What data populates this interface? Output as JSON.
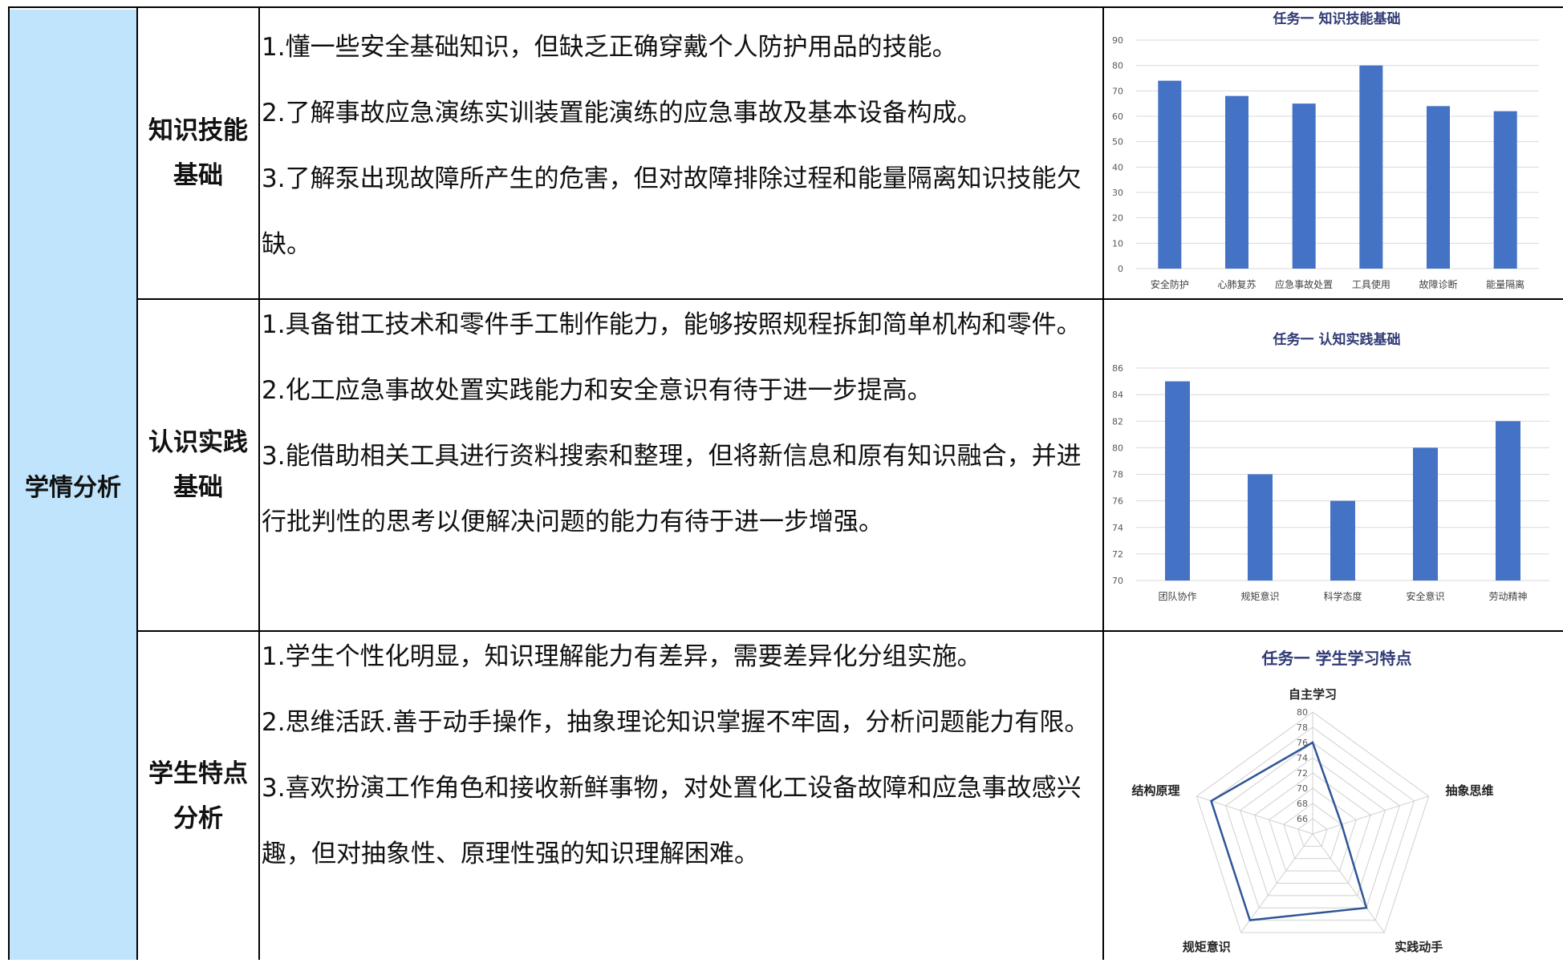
{
  "main_label": "学情分析",
  "rows": [
    {
      "label_lines": [
        "知识技能",
        "基础"
      ],
      "paragraphs": [
        "1.懂一些安全基础知识，但缺乏正确穿戴个人防护用品的技能。",
        "2.了解事故应急演练实训装置能演练的应急事故及基本设备构成。",
        "3.了解泵出现故障所产生的危害，但对故障排除过程和能量隔离知识技能欠缺。"
      ]
    },
    {
      "label_lines": [
        "认识实践",
        "基础"
      ],
      "paragraphs": [
        "1.具备钳工技术和零件手工制作能力，能够按照规程拆卸简单机构和零件。",
        "2.化工应急事故处置实践能力和安全意识有待于进一步提高。",
        "3.能借助相关工具进行资料搜索和整理，但将新信息和原有知识融合，并进行批判性的思考以便解决问题的能力有待于进一步增强。"
      ]
    },
    {
      "label_lines": [
        "学生特点",
        "分析"
      ],
      "paragraphs": [
        "1.学生个性化明显，知识理解能力有差异，需要差异化分组实施。",
        "2.思维活跃.善于动手操作，抽象理论知识掌握不牢固，分析问题能力有限。",
        "3.喜欢扮演工作角色和接收新鲜事物，对处置化工设备故障和应急事故感兴趣，但对抽象性、原理性强的知识理解困难。"
      ]
    }
  ],
  "chart_data": [
    {
      "type": "bar",
      "title": "任务一 知识技能基础",
      "categories": [
        "安全防护",
        "心肺复苏",
        "应急事故处置",
        "工具使用",
        "故障诊断",
        "能量隔离"
      ],
      "values": [
        74,
        68,
        65,
        80,
        64,
        62
      ],
      "ylim": [
        0,
        90
      ],
      "yticks": [
        0,
        10,
        20,
        30,
        40,
        50,
        60,
        70,
        80,
        90
      ],
      "grid": true,
      "color": "#4472c4"
    },
    {
      "type": "bar",
      "title": "任务一 认知实践基础",
      "categories": [
        "团队协作",
        "规矩意识",
        "科学态度",
        "安全意识",
        "劳动精神"
      ],
      "values": [
        85,
        78,
        76,
        80,
        82
      ],
      "ylim": [
        70,
        86
      ],
      "yticks": [
        70,
        72,
        74,
        76,
        78,
        80,
        82,
        84,
        86
      ],
      "grid": true,
      "color": "#4472c4"
    },
    {
      "type": "radar",
      "title": "任务一 学生学习特点",
      "categories": [
        "自主学习",
        "抽象思维",
        "实践动手",
        "规矩意识",
        "结构原理"
      ],
      "values": [
        76,
        68,
        76,
        78,
        78
      ],
      "ylim": [
        64,
        80
      ],
      "ticks": [
        64,
        66,
        68,
        70,
        72,
        74,
        76,
        78,
        80
      ],
      "color": "#2f5597"
    }
  ]
}
